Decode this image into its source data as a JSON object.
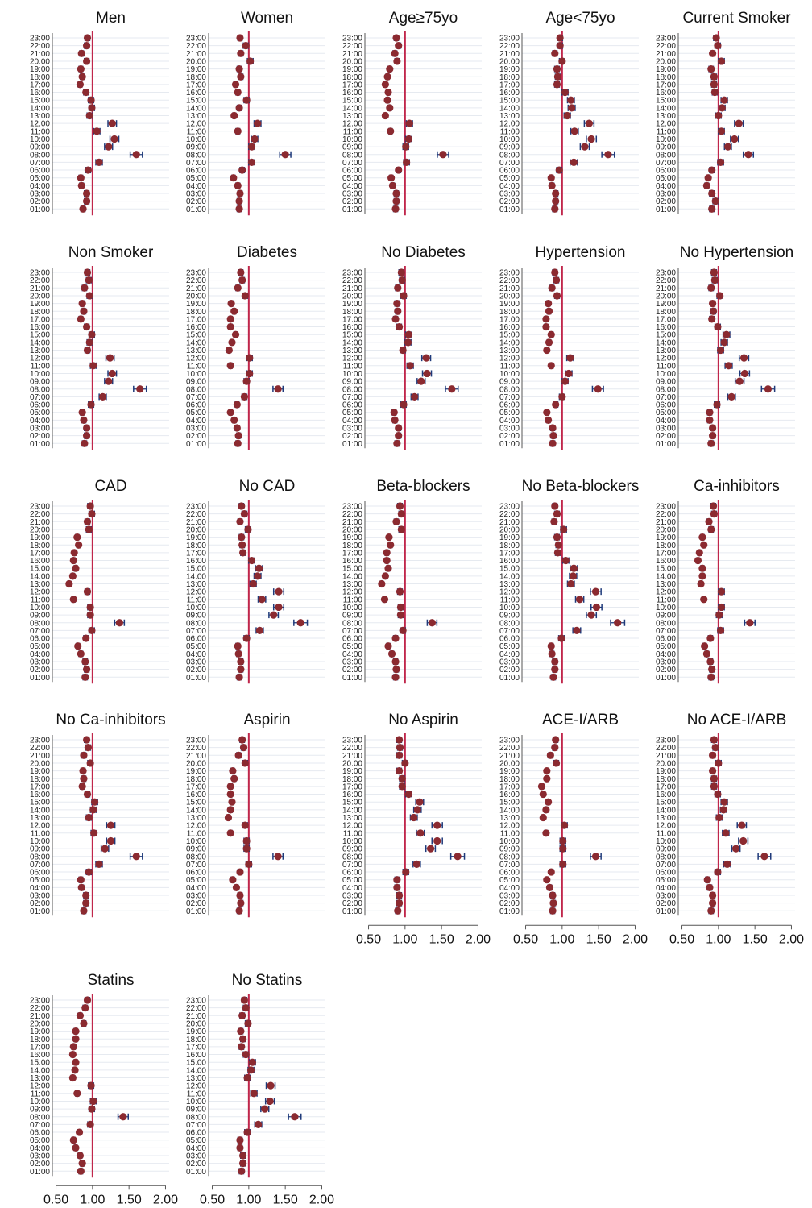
{
  "figure": {
    "hour_labels": [
      "23:00",
      "22:00",
      "21:00",
      "20:00",
      "19:00",
      "18:00",
      "17:00",
      "16:00",
      "15:00",
      "14:00",
      "13:00",
      "12:00",
      "11:00",
      "10:00",
      "09:00",
      "08:00",
      "07:00",
      "06:00",
      "05:00",
      "04:00",
      "03:00",
      "02:00",
      "01:00"
    ],
    "x_tick_labels": [
      "0.50",
      "1.00",
      "1.50",
      "2.00"
    ],
    "x_ticks": [
      0.5,
      1.0,
      1.5,
      2.0
    ],
    "xlim": [
      0.45,
      2.05
    ],
    "reference_value": 1.0,
    "colors": {
      "point": "#8b2a30",
      "error_bar": "#1f3a7a",
      "reference_line": "#c0264b",
      "gridline": "#e6eaf0",
      "axis": "#555555"
    }
  },
  "chart_data": [
    {
      "type": "scatter",
      "title": "Men",
      "x_axis_shown": false,
      "y": [
        "23:00",
        "22:00",
        "21:00",
        "20:00",
        "19:00",
        "18:00",
        "17:00",
        "16:00",
        "15:00",
        "14:00",
        "13:00",
        "12:00",
        "11:00",
        "10:00",
        "09:00",
        "08:00",
        "07:00",
        "06:00",
        "05:00",
        "04:00",
        "03:00",
        "02:00",
        "01:00"
      ],
      "x": [
        0.93,
        0.92,
        0.85,
        0.92,
        0.84,
        0.86,
        0.83,
        0.91,
        0.98,
        0.99,
        0.96,
        1.27,
        1.06,
        1.3,
        1.22,
        1.6,
        1.09,
        0.94,
        0.84,
        0.85,
        0.92,
        0.92,
        0.87
      ]
    },
    {
      "type": "scatter",
      "title": "Women",
      "x_axis_shown": false,
      "y": [
        "23:00",
        "22:00",
        "21:00",
        "20:00",
        "19:00",
        "18:00",
        "17:00",
        "16:00",
        "15:00",
        "14:00",
        "13:00",
        "12:00",
        "11:00",
        "10:00",
        "09:00",
        "08:00",
        "07:00",
        "06:00",
        "05:00",
        "04:00",
        "03:00",
        "02:00",
        "01:00"
      ],
      "x": [
        0.88,
        0.96,
        0.89,
        1.02,
        0.87,
        0.89,
        0.82,
        0.85,
        0.97,
        0.87,
        0.8,
        1.12,
        0.85,
        1.08,
        1.04,
        1.5,
        1.04,
        0.91,
        0.79,
        0.85,
        0.88,
        0.87,
        0.87
      ]
    },
    {
      "type": "scatter",
      "title": "Age≥75yo",
      "x_axis_shown": false,
      "y": [
        "23:00",
        "22:00",
        "21:00",
        "20:00",
        "19:00",
        "18:00",
        "17:00",
        "16:00",
        "15:00",
        "14:00",
        "13:00",
        "12:00",
        "11:00",
        "10:00",
        "09:00",
        "08:00",
        "07:00",
        "06:00",
        "05:00",
        "04:00",
        "03:00",
        "02:00",
        "01:00"
      ],
      "x": [
        0.88,
        0.91,
        0.86,
        0.89,
        0.79,
        0.76,
        0.73,
        0.77,
        0.76,
        0.79,
        0.73,
        1.06,
        0.8,
        1.05,
        1.01,
        1.52,
        1.02,
        0.91,
        0.81,
        0.83,
        0.88,
        0.88,
        0.87
      ]
    },
    {
      "type": "scatter",
      "title": "Age<75yo",
      "x_axis_shown": false,
      "y": [
        "23:00",
        "22:00",
        "21:00",
        "20:00",
        "19:00",
        "18:00",
        "17:00",
        "16:00",
        "15:00",
        "14:00",
        "13:00",
        "12:00",
        "11:00",
        "10:00",
        "09:00",
        "08:00",
        "07:00",
        "06:00",
        "05:00",
        "04:00",
        "03:00",
        "02:00",
        "01:00"
      ],
      "x": [
        0.97,
        0.97,
        0.9,
        1.0,
        0.93,
        0.94,
        0.93,
        1.04,
        1.12,
        1.13,
        1.07,
        1.37,
        1.17,
        1.4,
        1.31,
        1.63,
        1.16,
        0.96,
        0.85,
        0.86,
        0.91,
        0.91,
        0.9
      ]
    },
    {
      "type": "scatter",
      "title": "Current Smoker",
      "x_axis_shown": false,
      "y": [
        "23:00",
        "22:00",
        "21:00",
        "20:00",
        "19:00",
        "18:00",
        "17:00",
        "16:00",
        "15:00",
        "14:00",
        "13:00",
        "12:00",
        "11:00",
        "10:00",
        "09:00",
        "08:00",
        "07:00",
        "06:00",
        "05:00",
        "04:00",
        "03:00",
        "02:00",
        "01:00"
      ],
      "x": [
        0.97,
        0.99,
        0.92,
        1.04,
        0.9,
        0.94,
        0.94,
        0.95,
        1.08,
        1.05,
        1.0,
        1.28,
        1.04,
        1.22,
        1.13,
        1.41,
        1.03,
        0.91,
        0.86,
        0.84,
        0.91,
        0.96,
        0.91
      ]
    },
    {
      "type": "scatter",
      "title": "Non Smoker",
      "x_axis_shown": false,
      "y": [
        "23:00",
        "22:00",
        "21:00",
        "20:00",
        "19:00",
        "18:00",
        "17:00",
        "16:00",
        "15:00",
        "14:00",
        "13:00",
        "12:00",
        "11:00",
        "10:00",
        "09:00",
        "08:00",
        "07:00",
        "06:00",
        "05:00",
        "04:00",
        "03:00",
        "02:00",
        "01:00"
      ],
      "x": [
        0.93,
        0.95,
        0.89,
        0.96,
        0.86,
        0.88,
        0.84,
        0.92,
        0.99,
        0.96,
        0.93,
        1.24,
        1.01,
        1.27,
        1.22,
        1.65,
        1.14,
        0.98,
        0.86,
        0.88,
        0.92,
        0.92,
        0.89
      ]
    },
    {
      "type": "scatter",
      "title": "Diabetes",
      "x_axis_shown": false,
      "y": [
        "23:00",
        "22:00",
        "21:00",
        "20:00",
        "19:00",
        "18:00",
        "17:00",
        "16:00",
        "15:00",
        "14:00",
        "13:00",
        "12:00",
        "11:00",
        "10:00",
        "09:00",
        "08:00",
        "07:00",
        "06:00",
        "05:00",
        "04:00",
        "03:00",
        "02:00",
        "01:00"
      ],
      "x": [
        0.89,
        0.91,
        0.85,
        0.95,
        0.76,
        0.8,
        0.75,
        0.75,
        0.82,
        0.77,
        0.73,
        1.01,
        0.75,
        1.01,
        0.97,
        1.4,
        0.94,
        0.84,
        0.75,
        0.8,
        0.84,
        0.86,
        0.85
      ]
    },
    {
      "type": "scatter",
      "title": "No Diabetes",
      "x_axis_shown": false,
      "y": [
        "23:00",
        "22:00",
        "21:00",
        "20:00",
        "19:00",
        "18:00",
        "17:00",
        "16:00",
        "15:00",
        "14:00",
        "13:00",
        "12:00",
        "11:00",
        "10:00",
        "09:00",
        "08:00",
        "07:00",
        "06:00",
        "05:00",
        "04:00",
        "03:00",
        "02:00",
        "01:00"
      ],
      "x": [
        0.95,
        0.96,
        0.9,
        0.98,
        0.89,
        0.9,
        0.87,
        0.92,
        1.05,
        1.04,
        0.97,
        1.29,
        1.07,
        1.3,
        1.22,
        1.64,
        1.13,
        0.98,
        0.85,
        0.86,
        0.91,
        0.91,
        0.89
      ]
    },
    {
      "type": "scatter",
      "title": "Hypertension",
      "x_axis_shown": false,
      "y": [
        "23:00",
        "22:00",
        "21:00",
        "20:00",
        "19:00",
        "18:00",
        "17:00",
        "16:00",
        "15:00",
        "14:00",
        "13:00",
        "12:00",
        "11:00",
        "10:00",
        "09:00",
        "08:00",
        "07:00",
        "06:00",
        "05:00",
        "04:00",
        "03:00",
        "02:00",
        "01:00"
      ],
      "x": [
        0.9,
        0.92,
        0.86,
        0.93,
        0.81,
        0.82,
        0.78,
        0.78,
        0.85,
        0.82,
        0.79,
        1.11,
        0.85,
        1.09,
        1.04,
        1.49,
        1.0,
        0.91,
        0.79,
        0.81,
        0.87,
        0.88,
        0.87
      ]
    },
    {
      "type": "scatter",
      "title": "No Hypertension",
      "x_axis_shown": false,
      "y": [
        "23:00",
        "22:00",
        "21:00",
        "20:00",
        "19:00",
        "18:00",
        "17:00",
        "16:00",
        "15:00",
        "14:00",
        "13:00",
        "12:00",
        "11:00",
        "10:00",
        "09:00",
        "08:00",
        "07:00",
        "06:00",
        "05:00",
        "04:00",
        "03:00",
        "02:00",
        "01:00"
      ],
      "x": [
        0.94,
        0.95,
        0.9,
        1.02,
        0.92,
        0.93,
        0.91,
        0.99,
        1.11,
        1.08,
        1.03,
        1.35,
        1.14,
        1.36,
        1.29,
        1.68,
        1.18,
        0.98,
        0.88,
        0.88,
        0.92,
        0.92,
        0.9
      ]
    },
    {
      "type": "scatter",
      "title": "CAD",
      "x_axis_shown": false,
      "y": [
        "23:00",
        "22:00",
        "21:00",
        "20:00",
        "19:00",
        "18:00",
        "17:00",
        "16:00",
        "15:00",
        "14:00",
        "13:00",
        "12:00",
        "11:00",
        "10:00",
        "09:00",
        "08:00",
        "07:00",
        "06:00",
        "05:00",
        "04:00",
        "03:00",
        "02:00",
        "01:00"
      ],
      "x": [
        0.97,
        0.99,
        0.93,
        0.95,
        0.79,
        0.81,
        0.75,
        0.74,
        0.77,
        0.73,
        0.68,
        0.93,
        0.74,
        0.97,
        0.97,
        1.37,
        0.99,
        0.91,
        0.8,
        0.84,
        0.9,
        0.92,
        0.9
      ]
    },
    {
      "type": "scatter",
      "title": "No CAD",
      "x_axis_shown": false,
      "y": [
        "23:00",
        "22:00",
        "21:00",
        "20:00",
        "19:00",
        "18:00",
        "17:00",
        "16:00",
        "15:00",
        "14:00",
        "13:00",
        "12:00",
        "11:00",
        "10:00",
        "09:00",
        "08:00",
        "07:00",
        "06:00",
        "05:00",
        "04:00",
        "03:00",
        "02:00",
        "01:00"
      ],
      "x": [
        0.9,
        0.94,
        0.88,
        0.99,
        0.9,
        0.91,
        0.92,
        1.04,
        1.14,
        1.12,
        1.06,
        1.41,
        1.18,
        1.41,
        1.34,
        1.71,
        1.15,
        0.97,
        0.85,
        0.86,
        0.89,
        0.89,
        0.87
      ]
    },
    {
      "type": "scatter",
      "title": "Beta-blockers",
      "x_axis_shown": false,
      "y": [
        "23:00",
        "22:00",
        "21:00",
        "20:00",
        "19:00",
        "18:00",
        "17:00",
        "16:00",
        "15:00",
        "14:00",
        "13:00",
        "12:00",
        "11:00",
        "10:00",
        "09:00",
        "08:00",
        "07:00",
        "06:00",
        "05:00",
        "04:00",
        "03:00",
        "02:00",
        "01:00"
      ],
      "x": [
        0.93,
        0.95,
        0.88,
        0.95,
        0.78,
        0.8,
        0.75,
        0.75,
        0.77,
        0.73,
        0.68,
        0.93,
        0.72,
        0.94,
        0.94,
        1.37,
        0.97,
        0.87,
        0.77,
        0.82,
        0.87,
        0.88,
        0.87
      ]
    },
    {
      "type": "scatter",
      "title": "No Beta-blockers",
      "x_axis_shown": false,
      "y": [
        "23:00",
        "22:00",
        "21:00",
        "20:00",
        "19:00",
        "18:00",
        "17:00",
        "16:00",
        "15:00",
        "14:00",
        "13:00",
        "12:00",
        "11:00",
        "10:00",
        "09:00",
        "08:00",
        "07:00",
        "06:00",
        "05:00",
        "04:00",
        "03:00",
        "02:00",
        "01:00"
      ],
      "x": [
        0.9,
        0.93,
        0.89,
        1.02,
        0.93,
        0.95,
        0.94,
        1.05,
        1.16,
        1.15,
        1.12,
        1.46,
        1.24,
        1.47,
        1.4,
        1.76,
        1.2,
        0.99,
        0.85,
        0.86,
        0.9,
        0.9,
        0.88
      ]
    },
    {
      "type": "scatter",
      "title": "Ca-inhibitors",
      "x_axis_shown": false,
      "y": [
        "23:00",
        "22:00",
        "21:00",
        "20:00",
        "19:00",
        "18:00",
        "17:00",
        "16:00",
        "15:00",
        "14:00",
        "13:00",
        "12:00",
        "11:00",
        "10:00",
        "09:00",
        "08:00",
        "07:00",
        "06:00",
        "05:00",
        "04:00",
        "03:00",
        "02:00",
        "01:00"
      ],
      "x": [
        0.93,
        0.94,
        0.87,
        0.9,
        0.78,
        0.8,
        0.74,
        0.72,
        0.78,
        0.78,
        0.76,
        1.04,
        0.8,
        1.04,
        1.01,
        1.43,
        1.03,
        0.89,
        0.81,
        0.84,
        0.89,
        0.91,
        0.9
      ]
    },
    {
      "type": "scatter",
      "title": "No Ca-inhibitors",
      "x_axis_shown": false,
      "y": [
        "23:00",
        "22:00",
        "21:00",
        "20:00",
        "19:00",
        "18:00",
        "17:00",
        "16:00",
        "15:00",
        "14:00",
        "13:00",
        "12:00",
        "11:00",
        "10:00",
        "09:00",
        "08:00",
        "07:00",
        "06:00",
        "05:00",
        "04:00",
        "03:00",
        "02:00",
        "01:00"
      ],
      "x": [
        0.92,
        0.94,
        0.88,
        0.97,
        0.87,
        0.88,
        0.86,
        0.93,
        1.03,
        1.01,
        0.95,
        1.25,
        1.02,
        1.25,
        1.17,
        1.6,
        1.09,
        0.95,
        0.84,
        0.85,
        0.91,
        0.91,
        0.88
      ]
    },
    {
      "type": "scatter",
      "title": "Aspirin",
      "x_axis_shown": false,
      "y": [
        "23:00",
        "22:00",
        "21:00",
        "20:00",
        "19:00",
        "18:00",
        "17:00",
        "16:00",
        "15:00",
        "14:00",
        "13:00",
        "12:00",
        "11:00",
        "10:00",
        "09:00",
        "08:00",
        "07:00",
        "06:00",
        "05:00",
        "04:00",
        "03:00",
        "02:00",
        "01:00"
      ],
      "x": [
        0.91,
        0.93,
        0.86,
        0.95,
        0.78,
        0.8,
        0.75,
        0.75,
        0.77,
        0.75,
        0.72,
        0.95,
        0.75,
        0.97,
        0.97,
        1.4,
        1.0,
        0.88,
        0.78,
        0.83,
        0.88,
        0.89,
        0.87
      ]
    },
    {
      "type": "scatter",
      "title": "No Aspirin",
      "x_axis_shown": true,
      "y": [
        "23:00",
        "22:00",
        "21:00",
        "20:00",
        "19:00",
        "18:00",
        "17:00",
        "16:00",
        "15:00",
        "14:00",
        "13:00",
        "12:00",
        "11:00",
        "10:00",
        "09:00",
        "08:00",
        "07:00",
        "06:00",
        "05:00",
        "04:00",
        "03:00",
        "02:00",
        "01:00"
      ],
      "x": [
        0.92,
        0.93,
        0.92,
        1.0,
        0.92,
        0.96,
        0.96,
        1.05,
        1.2,
        1.17,
        1.12,
        1.44,
        1.21,
        1.44,
        1.35,
        1.72,
        1.16,
        1.01,
        0.89,
        0.89,
        0.92,
        0.92,
        0.9
      ]
    },
    {
      "type": "scatter",
      "title": "ACE-I/ARB",
      "x_axis_shown": true,
      "y": [
        "23:00",
        "22:00",
        "21:00",
        "20:00",
        "19:00",
        "18:00",
        "17:00",
        "16:00",
        "15:00",
        "14:00",
        "13:00",
        "12:00",
        "11:00",
        "10:00",
        "09:00",
        "08:00",
        "07:00",
        "06:00",
        "05:00",
        "04:00",
        "03:00",
        "02:00",
        "01:00"
      ],
      "x": [
        0.91,
        0.9,
        0.84,
        0.92,
        0.79,
        0.79,
        0.72,
        0.74,
        0.81,
        0.78,
        0.74,
        1.03,
        0.78,
        1.01,
        1.01,
        1.46,
        1.01,
        0.85,
        0.79,
        0.83,
        0.87,
        0.88,
        0.87
      ]
    },
    {
      "type": "scatter",
      "title": "No ACE-I/ARB",
      "x_axis_shown": true,
      "y": [
        "23:00",
        "22:00",
        "21:00",
        "20:00",
        "19:00",
        "18:00",
        "17:00",
        "16:00",
        "15:00",
        "14:00",
        "13:00",
        "12:00",
        "11:00",
        "10:00",
        "09:00",
        "08:00",
        "07:00",
        "06:00",
        "05:00",
        "04:00",
        "03:00",
        "02:00",
        "01:00"
      ],
      "x": [
        0.94,
        0.96,
        0.92,
        1.0,
        0.92,
        0.94,
        0.94,
        0.99,
        1.08,
        1.07,
        1.01,
        1.32,
        1.1,
        1.34,
        1.24,
        1.63,
        1.12,
        0.99,
        0.85,
        0.88,
        0.92,
        0.92,
        0.9
      ]
    },
    {
      "type": "scatter",
      "title": "Statins",
      "x_axis_shown": true,
      "y": [
        "23:00",
        "22:00",
        "21:00",
        "20:00",
        "19:00",
        "18:00",
        "17:00",
        "16:00",
        "15:00",
        "14:00",
        "13:00",
        "12:00",
        "11:00",
        "10:00",
        "09:00",
        "08:00",
        "07:00",
        "06:00",
        "05:00",
        "04:00",
        "03:00",
        "02:00",
        "01:00"
      ],
      "x": [
        0.93,
        0.9,
        0.83,
        0.88,
        0.77,
        0.77,
        0.74,
        0.73,
        0.77,
        0.76,
        0.73,
        0.98,
        0.79,
        1.01,
        0.99,
        1.42,
        0.97,
        0.82,
        0.74,
        0.77,
        0.83,
        0.86,
        0.84
      ]
    },
    {
      "type": "scatter",
      "title": "No Statins",
      "x_axis_shown": true,
      "y": [
        "23:00",
        "22:00",
        "21:00",
        "20:00",
        "19:00",
        "18:00",
        "17:00",
        "16:00",
        "15:00",
        "14:00",
        "13:00",
        "12:00",
        "11:00",
        "10:00",
        "09:00",
        "08:00",
        "07:00",
        "06:00",
        "05:00",
        "04:00",
        "03:00",
        "02:00",
        "01:00"
      ],
      "x": [
        0.94,
        0.96,
        0.91,
        0.99,
        0.89,
        0.92,
        0.9,
        0.96,
        1.05,
        1.03,
        0.98,
        1.3,
        1.07,
        1.29,
        1.22,
        1.63,
        1.13,
        0.98,
        0.88,
        0.88,
        0.92,
        0.92,
        0.9
      ]
    }
  ]
}
